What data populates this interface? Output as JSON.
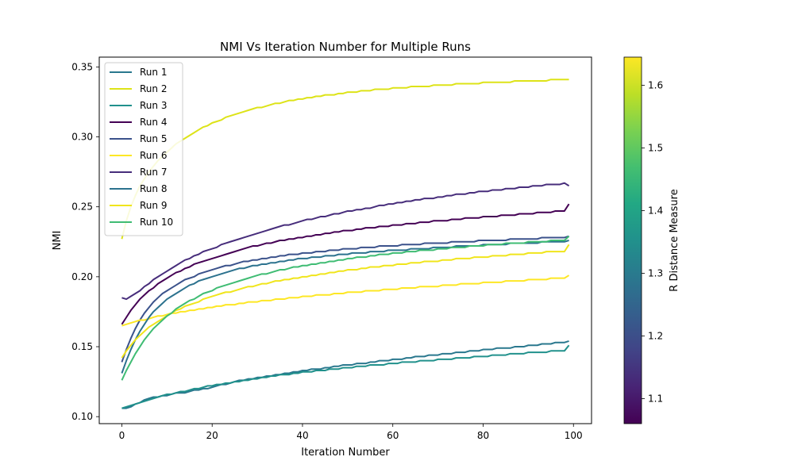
{
  "chart_data": {
    "type": "line",
    "title": "NMI Vs Iteration Number for Multiple Runs",
    "xlabel": "Iteration Number",
    "ylabel": "NMI",
    "xlim": [
      -5,
      104
    ],
    "ylim": [
      0.095,
      0.357
    ],
    "xticks": [
      0,
      20,
      40,
      60,
      80,
      100
    ],
    "xtick_labels": [
      "0",
      "20",
      "40",
      "60",
      "80",
      "100"
    ],
    "yticks": [
      0.1,
      0.15,
      0.2,
      0.25,
      0.3,
      0.35
    ],
    "ytick_labels": [
      "0.10",
      "0.15",
      "0.20",
      "0.25",
      "0.30",
      "0.35"
    ],
    "grid": false,
    "legend": "top-left",
    "colorbar": {
      "label": "R Distance Measure",
      "range": [
        1.06,
        1.645
      ],
      "ticks": [
        1.1,
        1.2,
        1.3,
        1.4,
        1.5,
        1.6
      ],
      "tick_labels": [
        "1.1",
        "1.2",
        "1.3",
        "1.4",
        "1.5",
        "1.6"
      ],
      "colormap": "viridis"
    },
    "x_range": [
      0,
      99
    ],
    "series": [
      {
        "name": "Run 1",
        "color": "#2a788e",
        "values": [
          0.106,
          0.106,
          0.107,
          0.109,
          0.11,
          0.112,
          0.113,
          0.114,
          0.114,
          0.115,
          0.115,
          0.116,
          0.117,
          0.117,
          0.117,
          0.118,
          0.119,
          0.119,
          0.12,
          0.12,
          0.121,
          0.122,
          0.123,
          0.123,
          0.124,
          0.125,
          0.126,
          0.126,
          0.127,
          0.127,
          0.128,
          0.128,
          0.129,
          0.129,
          0.13,
          0.13,
          0.131,
          0.131,
          0.132,
          0.132,
          0.133,
          0.133,
          0.134,
          0.134,
          0.134,
          0.135,
          0.135,
          0.136,
          0.136,
          0.137,
          0.137,
          0.137,
          0.138,
          0.138,
          0.138,
          0.139,
          0.139,
          0.14,
          0.14,
          0.14,
          0.141,
          0.141,
          0.141,
          0.142,
          0.142,
          0.143,
          0.143,
          0.143,
          0.144,
          0.144,
          0.144,
          0.145,
          0.145,
          0.145,
          0.146,
          0.146,
          0.146,
          0.147,
          0.147,
          0.147,
          0.148,
          0.148,
          0.148,
          0.149,
          0.149,
          0.149,
          0.149,
          0.15,
          0.15,
          0.15,
          0.151,
          0.151,
          0.151,
          0.152,
          0.152,
          0.152,
          0.153,
          0.153,
          0.153,
          0.154
        ]
      },
      {
        "name": "Run 2",
        "color": "#dde318",
        "values": [
          0.227,
          0.24,
          0.25,
          0.258,
          0.265,
          0.27,
          0.275,
          0.279,
          0.283,
          0.286,
          0.289,
          0.292,
          0.295,
          0.297,
          0.299,
          0.301,
          0.303,
          0.305,
          0.307,
          0.308,
          0.31,
          0.311,
          0.312,
          0.314,
          0.315,
          0.316,
          0.317,
          0.318,
          0.319,
          0.32,
          0.321,
          0.321,
          0.322,
          0.323,
          0.324,
          0.324,
          0.325,
          0.326,
          0.326,
          0.327,
          0.327,
          0.328,
          0.328,
          0.329,
          0.329,
          0.33,
          0.33,
          0.33,
          0.331,
          0.331,
          0.332,
          0.332,
          0.332,
          0.333,
          0.333,
          0.333,
          0.334,
          0.334,
          0.334,
          0.334,
          0.335,
          0.335,
          0.335,
          0.335,
          0.336,
          0.336,
          0.336,
          0.336,
          0.336,
          0.337,
          0.337,
          0.337,
          0.337,
          0.337,
          0.338,
          0.338,
          0.338,
          0.338,
          0.338,
          0.338,
          0.339,
          0.339,
          0.339,
          0.339,
          0.339,
          0.339,
          0.339,
          0.34,
          0.34,
          0.34,
          0.34,
          0.34,
          0.34,
          0.34,
          0.34,
          0.341,
          0.341,
          0.341,
          0.341,
          0.341
        ]
      },
      {
        "name": "Run 3",
        "color": "#21918c",
        "values": [
          0.106,
          0.107,
          0.108,
          0.109,
          0.11,
          0.111,
          0.112,
          0.113,
          0.114,
          0.115,
          0.116,
          0.116,
          0.117,
          0.118,
          0.118,
          0.119,
          0.12,
          0.12,
          0.121,
          0.122,
          0.122,
          0.123,
          0.123,
          0.124,
          0.124,
          0.125,
          0.125,
          0.126,
          0.126,
          0.127,
          0.127,
          0.128,
          0.128,
          0.129,
          0.129,
          0.13,
          0.13,
          0.13,
          0.131,
          0.131,
          0.132,
          0.132,
          0.132,
          0.133,
          0.133,
          0.133,
          0.134,
          0.134,
          0.134,
          0.135,
          0.135,
          0.135,
          0.136,
          0.136,
          0.136,
          0.137,
          0.137,
          0.137,
          0.137,
          0.138,
          0.138,
          0.138,
          0.139,
          0.139,
          0.139,
          0.139,
          0.14,
          0.14,
          0.14,
          0.14,
          0.141,
          0.141,
          0.141,
          0.141,
          0.142,
          0.142,
          0.142,
          0.142,
          0.143,
          0.143,
          0.143,
          0.143,
          0.144,
          0.144,
          0.144,
          0.144,
          0.145,
          0.145,
          0.145,
          0.145,
          0.146,
          0.146,
          0.146,
          0.146,
          0.146,
          0.147,
          0.147,
          0.147,
          0.147,
          0.151
        ]
      },
      {
        "name": "Run 4",
        "color": "#440154",
        "values": [
          0.166,
          0.171,
          0.176,
          0.18,
          0.184,
          0.187,
          0.19,
          0.192,
          0.195,
          0.197,
          0.199,
          0.201,
          0.203,
          0.204,
          0.206,
          0.207,
          0.209,
          0.21,
          0.211,
          0.212,
          0.213,
          0.214,
          0.215,
          0.216,
          0.217,
          0.218,
          0.219,
          0.22,
          0.221,
          0.222,
          0.222,
          0.223,
          0.224,
          0.224,
          0.225,
          0.226,
          0.226,
          0.227,
          0.227,
          0.228,
          0.228,
          0.229,
          0.229,
          0.23,
          0.23,
          0.231,
          0.231,
          0.232,
          0.232,
          0.233,
          0.233,
          0.233,
          0.234,
          0.234,
          0.235,
          0.235,
          0.235,
          0.236,
          0.236,
          0.236,
          0.237,
          0.237,
          0.237,
          0.238,
          0.238,
          0.238,
          0.239,
          0.239,
          0.239,
          0.24,
          0.24,
          0.24,
          0.24,
          0.241,
          0.241,
          0.241,
          0.242,
          0.242,
          0.242,
          0.242,
          0.243,
          0.243,
          0.243,
          0.243,
          0.244,
          0.244,
          0.244,
          0.244,
          0.245,
          0.245,
          0.245,
          0.245,
          0.246,
          0.246,
          0.246,
          0.246,
          0.247,
          0.247,
          0.247,
          0.252
        ]
      },
      {
        "name": "Run 5",
        "color": "#3b528b",
        "values": [
          0.139,
          0.148,
          0.156,
          0.163,
          0.169,
          0.174,
          0.178,
          0.182,
          0.185,
          0.188,
          0.19,
          0.192,
          0.194,
          0.196,
          0.198,
          0.199,
          0.2,
          0.202,
          0.203,
          0.204,
          0.205,
          0.206,
          0.207,
          0.208,
          0.208,
          0.209,
          0.21,
          0.211,
          0.211,
          0.212,
          0.212,
          0.213,
          0.213,
          0.214,
          0.214,
          0.215,
          0.215,
          0.216,
          0.216,
          0.216,
          0.217,
          0.217,
          0.217,
          0.218,
          0.218,
          0.218,
          0.219,
          0.219,
          0.219,
          0.22,
          0.22,
          0.22,
          0.22,
          0.221,
          0.221,
          0.221,
          0.221,
          0.222,
          0.222,
          0.222,
          0.222,
          0.222,
          0.223,
          0.223,
          0.223,
          0.223,
          0.223,
          0.224,
          0.224,
          0.224,
          0.224,
          0.224,
          0.224,
          0.225,
          0.225,
          0.225,
          0.225,
          0.225,
          0.225,
          0.226,
          0.226,
          0.226,
          0.226,
          0.226,
          0.226,
          0.226,
          0.227,
          0.227,
          0.227,
          0.227,
          0.227,
          0.227,
          0.227,
          0.228,
          0.228,
          0.228,
          0.228,
          0.228,
          0.228,
          0.229
        ]
      },
      {
        "name": "Run 6",
        "color": "#fde725",
        "values": [
          0.165,
          0.166,
          0.167,
          0.168,
          0.169,
          0.169,
          0.17,
          0.171,
          0.172,
          0.172,
          0.173,
          0.174,
          0.174,
          0.175,
          0.175,
          0.176,
          0.176,
          0.177,
          0.177,
          0.178,
          0.178,
          0.179,
          0.179,
          0.18,
          0.18,
          0.18,
          0.181,
          0.181,
          0.182,
          0.182,
          0.182,
          0.183,
          0.183,
          0.183,
          0.184,
          0.184,
          0.184,
          0.185,
          0.185,
          0.185,
          0.186,
          0.186,
          0.186,
          0.187,
          0.187,
          0.187,
          0.187,
          0.188,
          0.188,
          0.188,
          0.189,
          0.189,
          0.189,
          0.189,
          0.19,
          0.19,
          0.19,
          0.19,
          0.191,
          0.191,
          0.191,
          0.191,
          0.192,
          0.192,
          0.192,
          0.192,
          0.193,
          0.193,
          0.193,
          0.193,
          0.193,
          0.194,
          0.194,
          0.194,
          0.194,
          0.195,
          0.195,
          0.195,
          0.195,
          0.195,
          0.196,
          0.196,
          0.196,
          0.196,
          0.196,
          0.197,
          0.197,
          0.197,
          0.197,
          0.197,
          0.198,
          0.198,
          0.198,
          0.198,
          0.198,
          0.199,
          0.199,
          0.199,
          0.199,
          0.201
        ]
      },
      {
        "name": "Run 7",
        "color": "#472d7b",
        "values": [
          0.185,
          0.184,
          0.186,
          0.188,
          0.19,
          0.193,
          0.195,
          0.198,
          0.2,
          0.202,
          0.204,
          0.206,
          0.208,
          0.21,
          0.212,
          0.213,
          0.215,
          0.216,
          0.218,
          0.219,
          0.22,
          0.221,
          0.223,
          0.224,
          0.225,
          0.226,
          0.227,
          0.228,
          0.229,
          0.23,
          0.231,
          0.232,
          0.233,
          0.234,
          0.235,
          0.236,
          0.237,
          0.237,
          0.238,
          0.239,
          0.24,
          0.241,
          0.241,
          0.242,
          0.243,
          0.243,
          0.244,
          0.245,
          0.245,
          0.246,
          0.247,
          0.247,
          0.248,
          0.248,
          0.249,
          0.249,
          0.25,
          0.251,
          0.251,
          0.252,
          0.252,
          0.253,
          0.253,
          0.254,
          0.254,
          0.255,
          0.255,
          0.256,
          0.256,
          0.256,
          0.257,
          0.257,
          0.258,
          0.258,
          0.259,
          0.259,
          0.259,
          0.26,
          0.26,
          0.261,
          0.261,
          0.261,
          0.262,
          0.262,
          0.262,
          0.263,
          0.263,
          0.263,
          0.264,
          0.264,
          0.264,
          0.265,
          0.265,
          0.265,
          0.266,
          0.266,
          0.266,
          0.266,
          0.267,
          0.265
        ]
      },
      {
        "name": "Run 8",
        "color": "#2c728e",
        "values": [
          0.131,
          0.14,
          0.148,
          0.155,
          0.161,
          0.166,
          0.171,
          0.175,
          0.178,
          0.181,
          0.184,
          0.186,
          0.188,
          0.19,
          0.192,
          0.194,
          0.195,
          0.197,
          0.198,
          0.199,
          0.2,
          0.201,
          0.202,
          0.203,
          0.204,
          0.205,
          0.206,
          0.206,
          0.207,
          0.208,
          0.208,
          0.209,
          0.209,
          0.21,
          0.21,
          0.211,
          0.211,
          0.212,
          0.212,
          0.213,
          0.213,
          0.213,
          0.214,
          0.214,
          0.214,
          0.215,
          0.215,
          0.215,
          0.216,
          0.216,
          0.216,
          0.217,
          0.217,
          0.217,
          0.217,
          0.218,
          0.218,
          0.218,
          0.218,
          0.219,
          0.219,
          0.219,
          0.219,
          0.219,
          0.22,
          0.22,
          0.22,
          0.22,
          0.22,
          0.221,
          0.221,
          0.221,
          0.221,
          0.221,
          0.222,
          0.222,
          0.222,
          0.222,
          0.222,
          0.222,
          0.223,
          0.223,
          0.223,
          0.223,
          0.223,
          0.223,
          0.224,
          0.224,
          0.224,
          0.224,
          0.224,
          0.224,
          0.224,
          0.225,
          0.225,
          0.225,
          0.225,
          0.225,
          0.225,
          0.226
        ]
      },
      {
        "name": "Run 9",
        "color": "#f0e51c",
        "values": [
          0.142,
          0.147,
          0.151,
          0.155,
          0.158,
          0.161,
          0.164,
          0.166,
          0.168,
          0.17,
          0.172,
          0.174,
          0.176,
          0.177,
          0.179,
          0.18,
          0.181,
          0.182,
          0.184,
          0.185,
          0.186,
          0.187,
          0.188,
          0.189,
          0.189,
          0.19,
          0.191,
          0.192,
          0.193,
          0.193,
          0.194,
          0.195,
          0.195,
          0.196,
          0.197,
          0.197,
          0.198,
          0.198,
          0.199,
          0.199,
          0.2,
          0.2,
          0.201,
          0.201,
          0.202,
          0.202,
          0.203,
          0.203,
          0.204,
          0.204,
          0.205,
          0.205,
          0.205,
          0.206,
          0.206,
          0.207,
          0.207,
          0.207,
          0.208,
          0.208,
          0.208,
          0.209,
          0.209,
          0.209,
          0.21,
          0.21,
          0.21,
          0.211,
          0.211,
          0.211,
          0.211,
          0.212,
          0.212,
          0.212,
          0.213,
          0.213,
          0.213,
          0.213,
          0.214,
          0.214,
          0.214,
          0.214,
          0.215,
          0.215,
          0.215,
          0.215,
          0.216,
          0.216,
          0.216,
          0.216,
          0.217,
          0.217,
          0.217,
          0.217,
          0.218,
          0.218,
          0.218,
          0.218,
          0.218,
          0.223
        ]
      },
      {
        "name": "Run 10",
        "color": "#3fbc73",
        "values": [
          0.126,
          0.133,
          0.139,
          0.145,
          0.15,
          0.155,
          0.159,
          0.163,
          0.166,
          0.169,
          0.172,
          0.174,
          0.177,
          0.179,
          0.181,
          0.183,
          0.184,
          0.186,
          0.188,
          0.189,
          0.19,
          0.192,
          0.193,
          0.194,
          0.195,
          0.196,
          0.197,
          0.198,
          0.199,
          0.2,
          0.201,
          0.202,
          0.202,
          0.203,
          0.204,
          0.205,
          0.205,
          0.206,
          0.207,
          0.207,
          0.208,
          0.208,
          0.209,
          0.209,
          0.21,
          0.21,
          0.211,
          0.211,
          0.212,
          0.212,
          0.213,
          0.213,
          0.214,
          0.214,
          0.214,
          0.215,
          0.215,
          0.216,
          0.216,
          0.216,
          0.217,
          0.217,
          0.217,
          0.218,
          0.218,
          0.218,
          0.219,
          0.219,
          0.219,
          0.219,
          0.22,
          0.22,
          0.22,
          0.221,
          0.221,
          0.221,
          0.221,
          0.222,
          0.222,
          0.222,
          0.222,
          0.223,
          0.223,
          0.223,
          0.223,
          0.224,
          0.224,
          0.224,
          0.224,
          0.224,
          0.225,
          0.225,
          0.225,
          0.225,
          0.225,
          0.226,
          0.226,
          0.226,
          0.226,
          0.229
        ]
      }
    ]
  }
}
